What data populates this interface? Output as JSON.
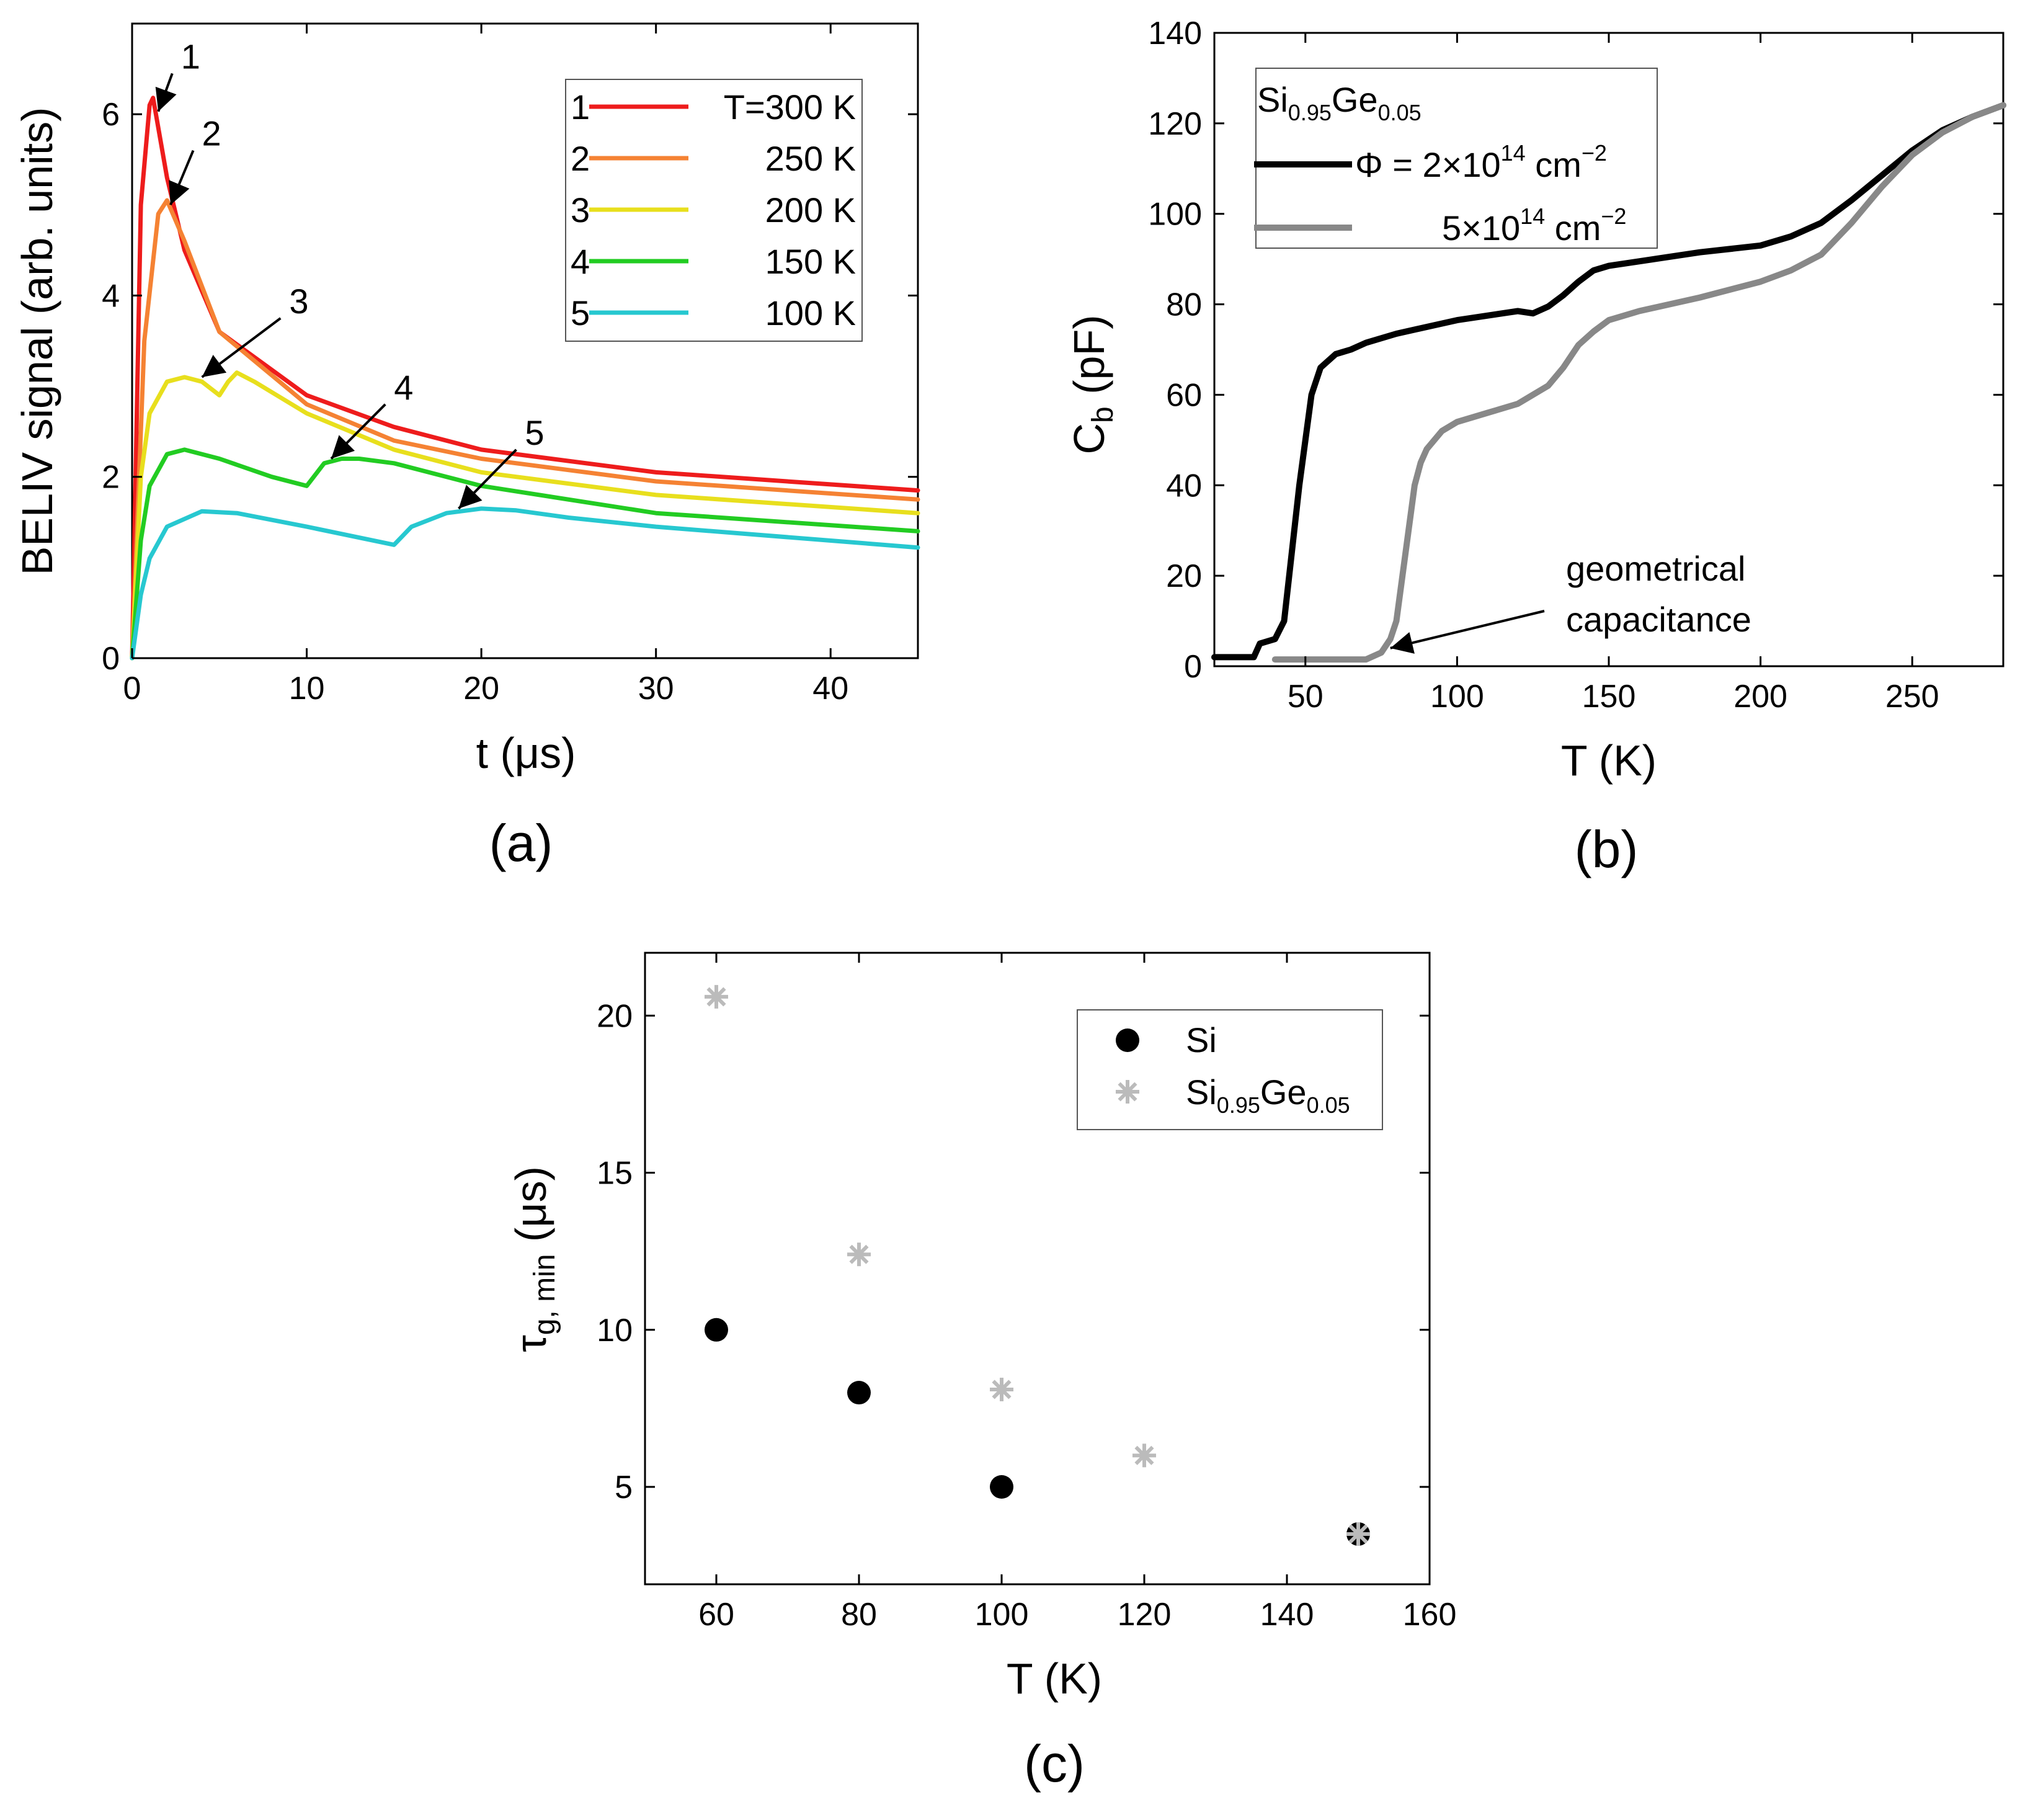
{
  "chart_data": [
    {
      "id": "a",
      "type": "line",
      "panel_label": "(a)",
      "xlabel_main": "t (",
      "xlabel_unit": "μs)",
      "ylabel": "BELIV signal (arb. units)",
      "xlim": [
        0,
        45
      ],
      "ylim": [
        0,
        7
      ],
      "xticks": [
        "0",
        "10",
        "20",
        "30",
        "40"
      ],
      "yticks": [
        "0",
        "2",
        "4",
        "6"
      ],
      "legend": {
        "position": "top-right",
        "entries": [
          {
            "num": "1",
            "label": "T=300 K"
          },
          {
            "num": "2",
            "label": "250 K"
          },
          {
            "num": "3",
            "label": "200 K"
          },
          {
            "num": "4",
            "label": "150 K"
          },
          {
            "num": "5",
            "label": "100 K"
          }
        ]
      },
      "series": [
        {
          "name": "T=300 K",
          "color": "#ee1c1c",
          "x": [
            0,
            0.5,
            1,
            1.2,
            2,
            3,
            5,
            10,
            15,
            20,
            30,
            45
          ],
          "y": [
            0,
            5.0,
            6.1,
            6.18,
            5.3,
            4.5,
            3.6,
            2.9,
            2.55,
            2.3,
            2.05,
            1.85
          ]
        },
        {
          "name": "250 K",
          "color": "#f58233",
          "x": [
            0,
            0.7,
            1.5,
            2,
            3,
            5,
            10,
            15,
            20,
            30,
            45
          ],
          "y": [
            0,
            3.5,
            4.9,
            5.05,
            4.6,
            3.6,
            2.8,
            2.4,
            2.2,
            1.95,
            1.75
          ]
        },
        {
          "name": "200 K",
          "color": "#e8df1d",
          "x": [
            0,
            0.5,
            1,
            2,
            3,
            4,
            5,
            5.5,
            6,
            7,
            10,
            15,
            20,
            30,
            45
          ],
          "y": [
            0,
            2.0,
            2.7,
            3.05,
            3.1,
            3.05,
            2.9,
            3.05,
            3.15,
            3.05,
            2.7,
            2.3,
            2.05,
            1.8,
            1.6
          ]
        },
        {
          "name": "150 K",
          "color": "#22cc22",
          "x": [
            0,
            0.5,
            1,
            2,
            3,
            5,
            8,
            10,
            11,
            12,
            13,
            15,
            20,
            30,
            45
          ],
          "y": [
            0,
            1.3,
            1.9,
            2.25,
            2.3,
            2.2,
            2.0,
            1.9,
            2.15,
            2.2,
            2.2,
            2.15,
            1.9,
            1.6,
            1.4
          ]
        },
        {
          "name": "100 K",
          "color": "#27c8d0",
          "x": [
            0,
            0.5,
            1,
            2,
            4,
            6,
            10,
            15,
            16,
            18,
            20,
            22,
            25,
            30,
            45
          ],
          "y": [
            0,
            0.7,
            1.1,
            1.45,
            1.62,
            1.6,
            1.45,
            1.25,
            1.45,
            1.6,
            1.65,
            1.63,
            1.55,
            1.45,
            1.22
          ]
        }
      ],
      "annotations": [
        {
          "label": "1",
          "x": 2.3,
          "y": 6.45,
          "tx": 1.5,
          "ty": 6.03
        },
        {
          "label": "2",
          "x": 3.5,
          "y": 5.6,
          "tx": 2.2,
          "ty": 5.0
        },
        {
          "label": "3",
          "x": 8.5,
          "y": 3.75,
          "tx": 4.0,
          "ty": 3.1
        },
        {
          "label": "4",
          "x": 14.5,
          "y": 2.8,
          "tx": 11.4,
          "ty": 2.2
        },
        {
          "label": "5",
          "x": 22.0,
          "y": 2.3,
          "tx": 18.7,
          "ty": 1.65
        }
      ]
    },
    {
      "id": "b",
      "type": "line",
      "panel_label": "(b)",
      "xlabel": "T (K)",
      "ylabel_main": "C",
      "ylabel_sub": "b",
      "ylabel_unit": " (pF)",
      "xlim": [
        20,
        280
      ],
      "ylim": [
        0,
        140
      ],
      "xticks": [
        "50",
        "100",
        "150",
        "200",
        "250"
      ],
      "yticks": [
        "0",
        "20",
        "40",
        "60",
        "80",
        "100",
        "120",
        "140"
      ],
      "legend": {
        "position": "top-left",
        "title": {
          "base": "Si",
          "sub1": "0.95",
          "mid": "Ge",
          "sub2": "0.05"
        },
        "entries": [
          {
            "prefix": "Φ = 2×10",
            "exp": "14",
            "unit": " cm",
            "uexp": "−2"
          },
          {
            "prefix": "5×10",
            "exp": "14",
            "unit": " cm",
            "uexp": "−2"
          }
        ]
      },
      "series": [
        {
          "name": "Φ = 2×10^14 cm^-2",
          "color": "#000000",
          "x": [
            20,
            33,
            35,
            40,
            43,
            46,
            48,
            50,
            52,
            55,
            60,
            65,
            70,
            80,
            100,
            120,
            125,
            130,
            135,
            140,
            145,
            150,
            160,
            180,
            200,
            210,
            220,
            230,
            240,
            250,
            260,
            270,
            280
          ],
          "y": [
            2,
            2,
            5,
            6,
            10,
            28,
            40,
            50,
            60,
            66,
            69,
            70,
            71.5,
            73.5,
            76.5,
            78.5,
            78,
            79.5,
            82,
            85,
            87.5,
            88.5,
            89.5,
            91.5,
            93,
            95,
            98,
            103,
            108.5,
            114,
            118.5,
            121.5,
            124
          ]
        },
        {
          "name": "5×10^14 cm^-2",
          "color": "#888888",
          "x": [
            40,
            70,
            75,
            78,
            80,
            82,
            84,
            86,
            88,
            90,
            95,
            100,
            110,
            120,
            130,
            135,
            140,
            145,
            150,
            160,
            180,
            200,
            210,
            220,
            230,
            240,
            250,
            260,
            270,
            280
          ],
          "y": [
            1.5,
            1.5,
            3,
            6,
            10,
            20,
            30,
            40,
            45,
            48,
            52,
            54,
            56,
            58,
            62,
            66,
            71,
            74,
            76.5,
            78.5,
            81.5,
            85,
            87.5,
            91,
            98,
            106,
            113,
            118,
            121.5,
            124
          ]
        }
      ],
      "annotations": [
        {
          "label_lines": [
            "geometrical",
            "capacitance"
          ],
          "x": 92,
          "y": 17,
          "tx": 78,
          "ty": 4
        }
      ]
    },
    {
      "id": "c",
      "type": "scatter",
      "panel_label": "(c)",
      "xlabel": "T (K)",
      "ylabel_main": "τ",
      "ylabel_sub": "g, min",
      "ylabel_unit": " (μs)",
      "xlim": [
        50,
        160
      ],
      "ylim": [
        1.9,
        22
      ],
      "xticks": [
        "60",
        "80",
        "100",
        "120",
        "140",
        "160"
      ],
      "yticks": [
        "5",
        "10",
        "15",
        "20"
      ],
      "legend": {
        "position": "top-right",
        "entries": [
          {
            "label": "Si",
            "marker": "circle"
          },
          {
            "base": "Si",
            "sub1": "0.95",
            "mid": "Ge",
            "sub2": "0.05",
            "marker": "asterisk"
          }
        ]
      },
      "series": [
        {
          "name": "Si",
          "color": "#000000",
          "marker": "circle",
          "x": [
            60,
            80,
            100,
            150
          ],
          "y": [
            10,
            8,
            5,
            3.5
          ]
        },
        {
          "name": "Si0.95Ge0.05",
          "color": "#bbbbbb",
          "marker": "asterisk",
          "x": [
            60,
            80,
            100,
            120,
            150
          ],
          "y": [
            20.6,
            12.4,
            8.1,
            6.0,
            3.5
          ]
        }
      ]
    }
  ]
}
